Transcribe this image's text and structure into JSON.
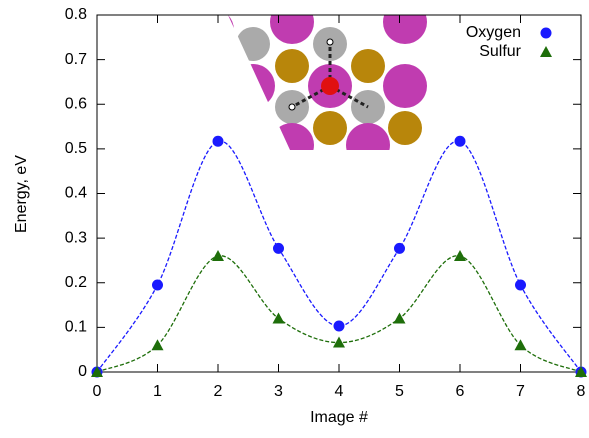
{
  "chart_data": {
    "type": "line",
    "x": [
      0,
      1,
      2,
      3,
      4,
      5,
      6,
      7,
      8
    ],
    "xlabel": "Image #",
    "ylabel": "Energy, eV",
    "series": [
      {
        "name": "Oxygen",
        "color": "#1a1aff",
        "marker": "circle",
        "values": [
          0,
          0.195,
          0.517,
          0.277,
          0.103,
          0.277,
          0.517,
          0.195,
          0
        ]
      },
      {
        "name": "Sulfur",
        "color": "#1e6e0a",
        "marker": "triangle",
        "values": [
          0,
          0.06,
          0.26,
          0.12,
          0.066,
          0.12,
          0.26,
          0.06,
          0
        ]
      }
    ],
    "xlim": [
      0,
      8
    ],
    "xticks": [
      0,
      1,
      2,
      3,
      4,
      5,
      6,
      7,
      8
    ],
    "ylim": [
      0,
      0.8
    ],
    "yticks": [
      0,
      0.1,
      0.2,
      0.3,
      0.4,
      0.5,
      0.6,
      0.7,
      0.8
    ],
    "legend": "upper-right"
  }
}
